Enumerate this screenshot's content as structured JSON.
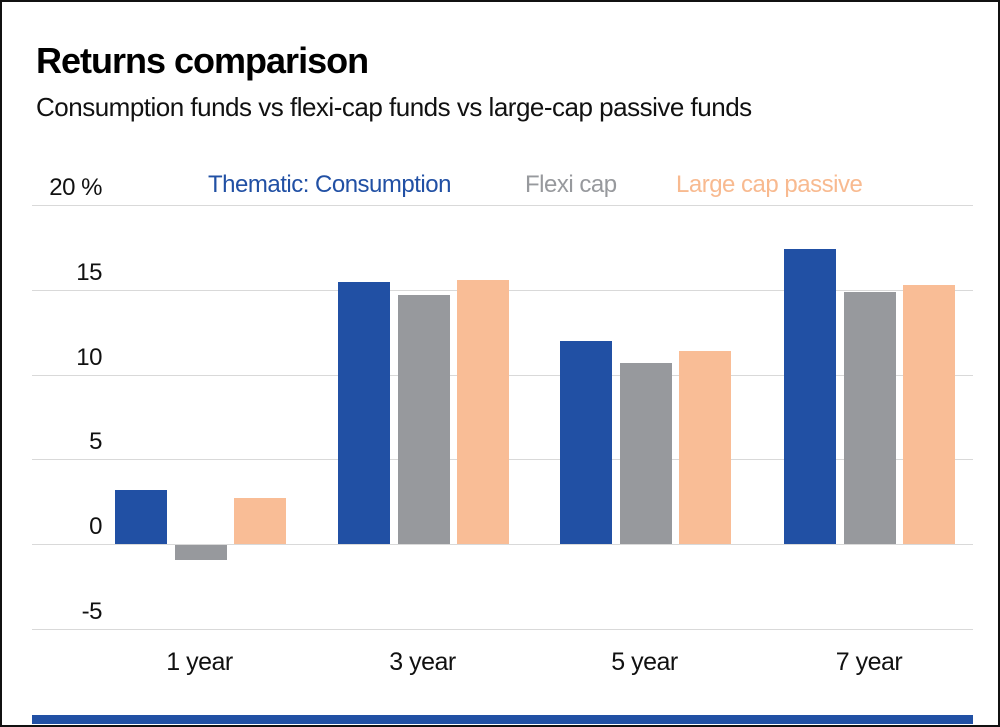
{
  "header": {
    "title": "Returns comparison",
    "subtitle": "Consumption funds vs flexi-cap funds vs large-cap passive funds"
  },
  "legend": [
    {
      "label": "Thematic: Consumption",
      "color": "#2150a4"
    },
    {
      "label": "Flexi cap",
      "color": "#97999d"
    },
    {
      "label": "Large cap passive",
      "color": "#f8ba90"
    }
  ],
  "colors": {
    "accent_blue": "#2150a4",
    "bar_gray": "#97999d",
    "bar_peach": "#f9bd96",
    "gridline": "#d9d9d9",
    "bottom_stripe": "#2150a4"
  },
  "chart_data": {
    "type": "bar",
    "title": "Returns comparison",
    "subtitle": "Consumption funds vs flexi-cap funds vs large-cap passive funds",
    "categories": [
      "1 year",
      "3 year",
      "5 year",
      "7 year"
    ],
    "series": [
      {
        "name": "Thematic: Consumption",
        "color": "#2150a4",
        "values": [
          3.2,
          15.5,
          12.0,
          17.4
        ]
      },
      {
        "name": "Flexi cap",
        "color": "#97999d",
        "values": [
          -0.9,
          14.7,
          10.7,
          14.9
        ]
      },
      {
        "name": "Large cap passive",
        "color": "#f9bd96",
        "values": [
          2.7,
          15.6,
          11.4,
          15.3
        ]
      }
    ],
    "ylabel": "%",
    "ylim": [
      -5,
      20
    ],
    "yticks": [
      20,
      15,
      10,
      5,
      0,
      -5
    ],
    "ytick_labels": [
      "20 %",
      "15",
      "10",
      "5",
      "0",
      "-5"
    ],
    "grid": true,
    "legend_position": "top"
  }
}
